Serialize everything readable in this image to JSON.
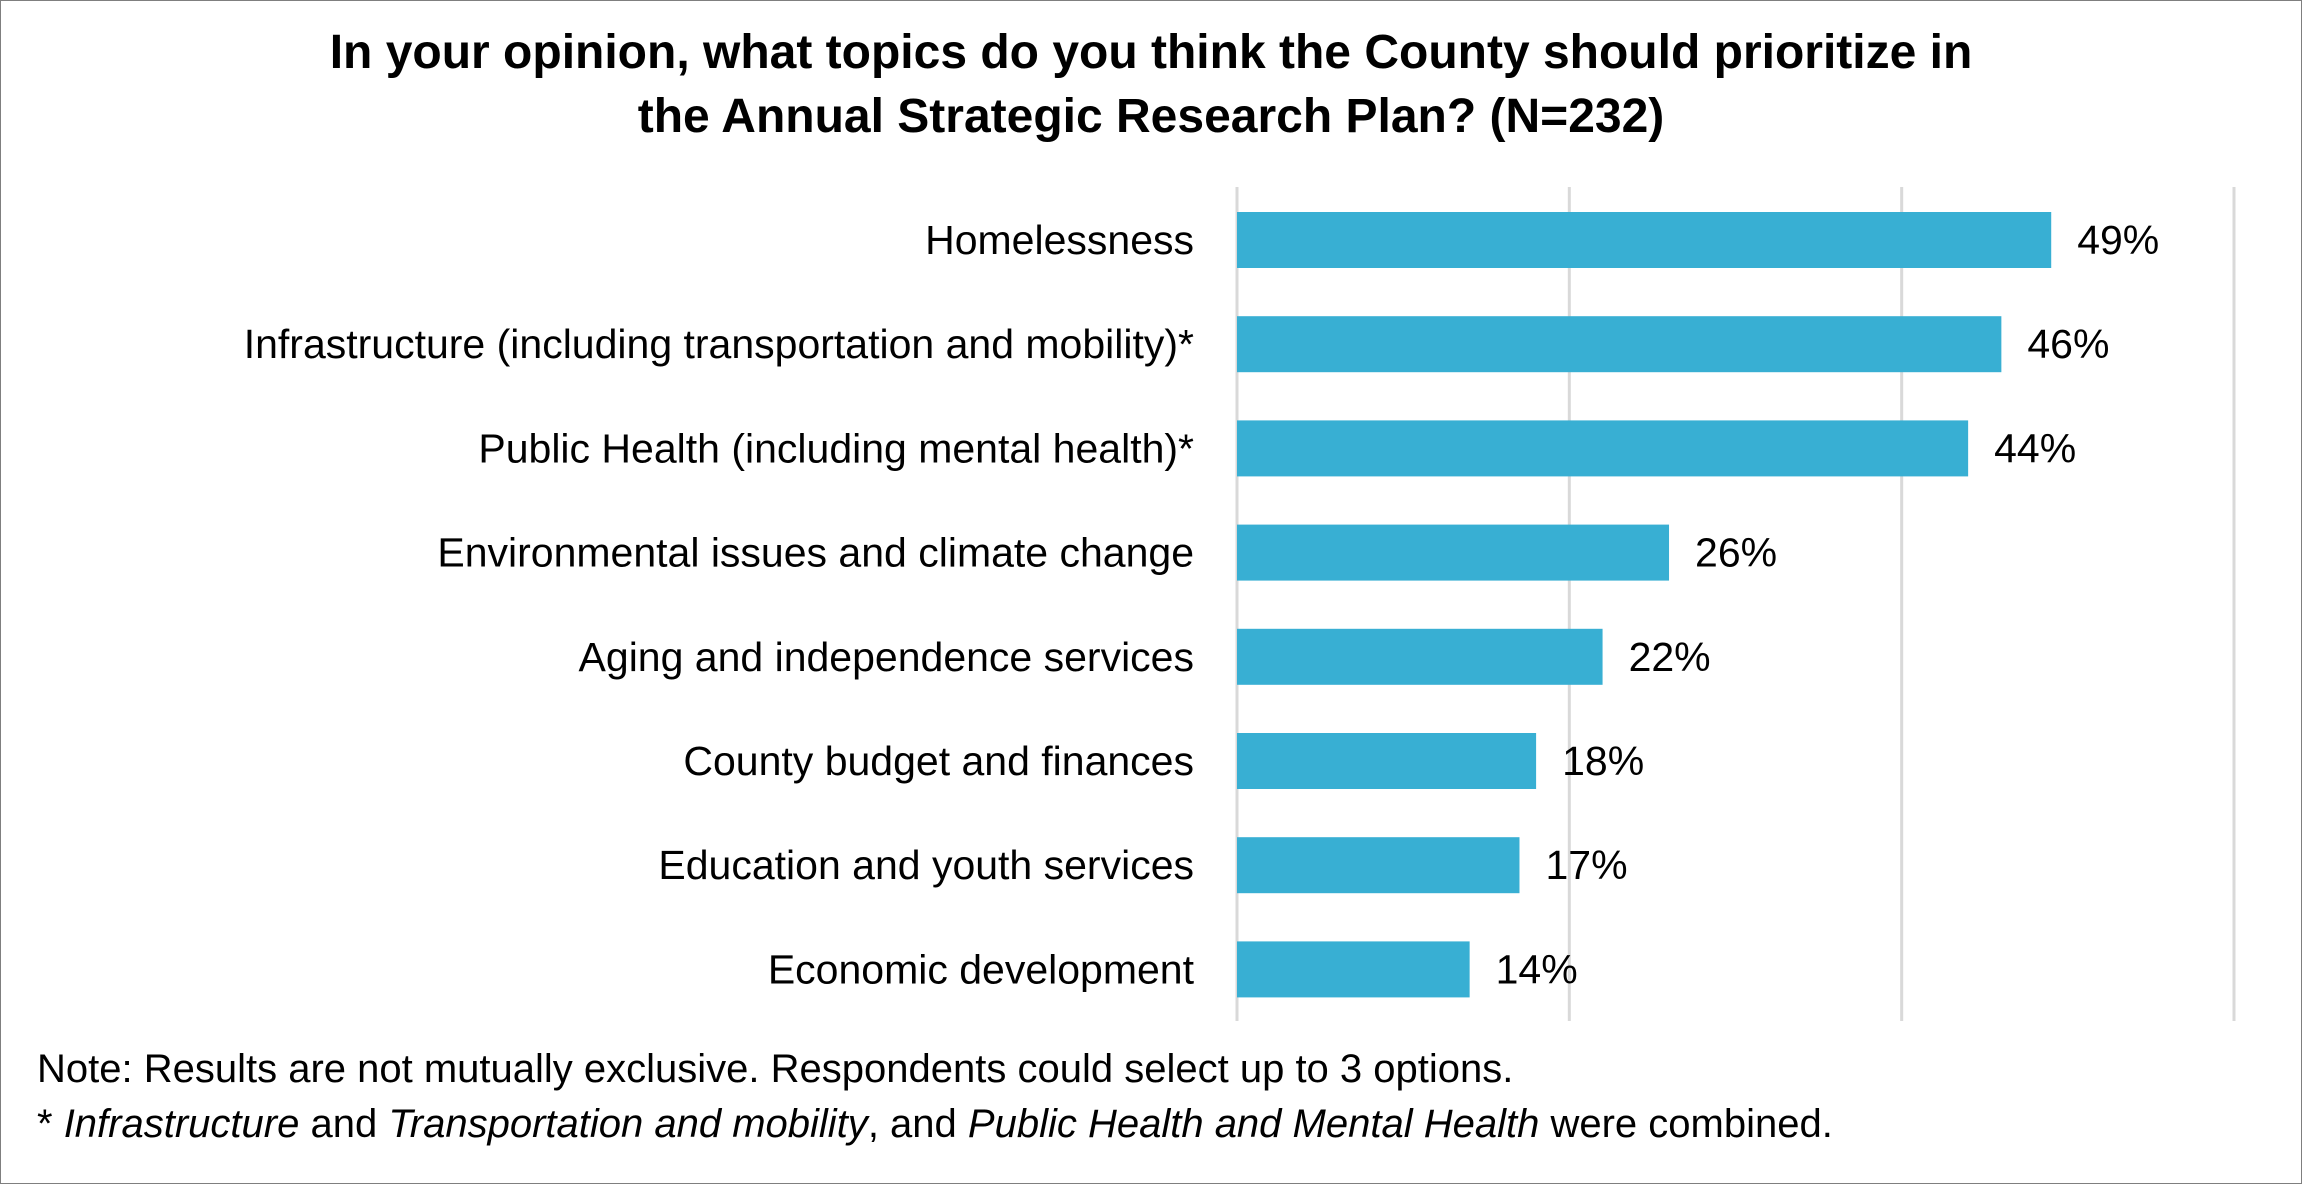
{
  "chart_data": {
    "type": "bar",
    "orientation": "horizontal",
    "title_lines": [
      "In your opinion, what topics do you think the County should prioritize in",
      "the Annual Strategic Research Plan? (N=232)"
    ],
    "categories": [
      "Homelessness",
      "Infrastructure (including transportation and mobility)*",
      "Public Health (including mental health)*",
      "Environmental issues and climate change",
      "Aging and independence services",
      "County budget and finances",
      "Education and youth services",
      "Economic development"
    ],
    "values": [
      49,
      46,
      44,
      26,
      22,
      18,
      17,
      14
    ],
    "value_labels": [
      "49%",
      "46%",
      "44%",
      "26%",
      "22%",
      "18%",
      "17%",
      "14%"
    ],
    "unit": "%",
    "xlim": [
      0,
      60
    ],
    "gridlines": [
      0,
      20,
      40,
      60
    ],
    "grid": true,
    "bar_color": "#38afd3",
    "grid_color": "#d9d9d9"
  },
  "notes": {
    "line1": "Note: Results are not mutually exclusive. Respondents could select up to 3 options.",
    "line2": {
      "prefix": "* ",
      "term1": "Infrastructure",
      "and1": " and ",
      "term2": "Transportation and mobility",
      "and2": ", and ",
      "term3": "Public Health and Mental Health",
      "suffix": " were combined."
    }
  }
}
